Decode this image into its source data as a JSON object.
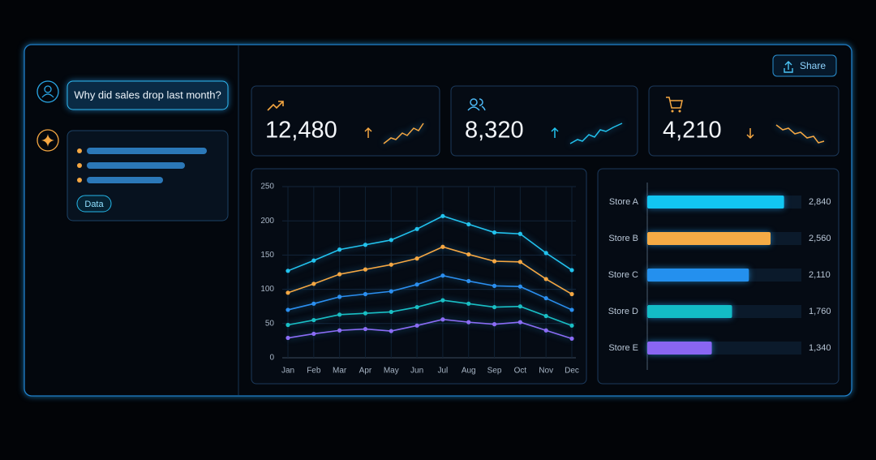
{
  "chat": {
    "question": "Why did sales drop last month?",
    "chip": "Data"
  },
  "share": "Share",
  "kpis": [
    {
      "value": "12,480"
    },
    {
      "value": "8,320"
    },
    {
      "value": "4,210"
    }
  ],
  "chart_data": [
    {
      "type": "line",
      "categories": [
        "Jan",
        "Feb",
        "Mar",
        "Apr",
        "May",
        "Jun",
        "Jul",
        "Aug",
        "Sep",
        "Oct",
        "Nov",
        "Dec"
      ],
      "series": [
        {
          "color": "#22c3ee",
          "values": [
            127,
            142,
            158,
            165,
            172,
            188,
            207,
            195,
            183,
            181,
            153,
            128
          ]
        },
        {
          "color": "#f5a742",
          "values": [
            95,
            108,
            122,
            129,
            136,
            145,
            162,
            151,
            141,
            140,
            115,
            93
          ]
        },
        {
          "color": "#2b8ff0",
          "values": [
            70,
            79,
            89,
            93,
            97,
            107,
            120,
            112,
            105,
            104,
            87,
            70
          ]
        },
        {
          "color": "#19bfc4",
          "values": [
            48,
            55,
            63,
            65,
            67,
            74,
            84,
            79,
            74,
            75,
            61,
            47
          ]
        },
        {
          "color": "#8b6cf5",
          "values": [
            29,
            35,
            40,
            42,
            39,
            47,
            56,
            52,
            49,
            52,
            40,
            28
          ]
        }
      ],
      "ylim": [
        0,
        250
      ],
      "yticks": [
        0,
        50,
        100,
        150,
        200,
        250
      ],
      "grid": true
    },
    {
      "type": "hbar",
      "categories": [
        "Store A",
        "Store B",
        "Store C",
        "Store D",
        "Store E"
      ],
      "values": [
        2840,
        2560,
        2110,
        1760,
        1340
      ],
      "value_labels": [
        "2,840",
        "2,560",
        "2,110",
        "1,760",
        "1,340"
      ],
      "colors": [
        "#12c6f2",
        "#f5ab45",
        "#2490ee",
        "#13bcc6",
        "#8966f2"
      ],
      "xlim": [
        0,
        3200
      ]
    }
  ]
}
